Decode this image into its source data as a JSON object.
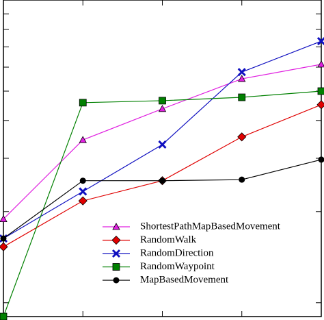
{
  "chart_data": {
    "type": "line",
    "log_y": true,
    "categories": [
      null,
      null,
      null,
      null,
      null
    ],
    "ylim": [
      0.9,
      10
    ],
    "yticks": [
      1,
      2,
      3,
      4,
      5,
      6,
      7,
      8,
      9
    ],
    "series": [
      {
        "name": "ShortestPathMapBasedMovement",
        "color": "#e020e0",
        "marker": "triangle",
        "values": [
          1.89,
          3.45,
          4.37,
          5.49,
          6.13
        ]
      },
      {
        "name": "RandomWalk",
        "color": "#e00000",
        "marker": "diamond",
        "values": [
          1.53,
          2.17,
          2.53,
          3.53,
          4.51
        ]
      },
      {
        "name": "RandomDirection",
        "color": "#1010c0",
        "marker": "x",
        "values": [
          1.63,
          2.33,
          3.33,
          5.78,
          7.31
        ]
      },
      {
        "name": "RandomWaypoint",
        "color": "#008000",
        "marker": "square",
        "values": [
          0.9,
          4.58,
          4.65,
          4.77,
          5.0
        ]
      },
      {
        "name": "MapBasedMovement",
        "color": "#000000",
        "marker": "circle",
        "values": [
          1.63,
          2.53,
          2.53,
          2.55,
          2.97
        ]
      }
    ]
  }
}
